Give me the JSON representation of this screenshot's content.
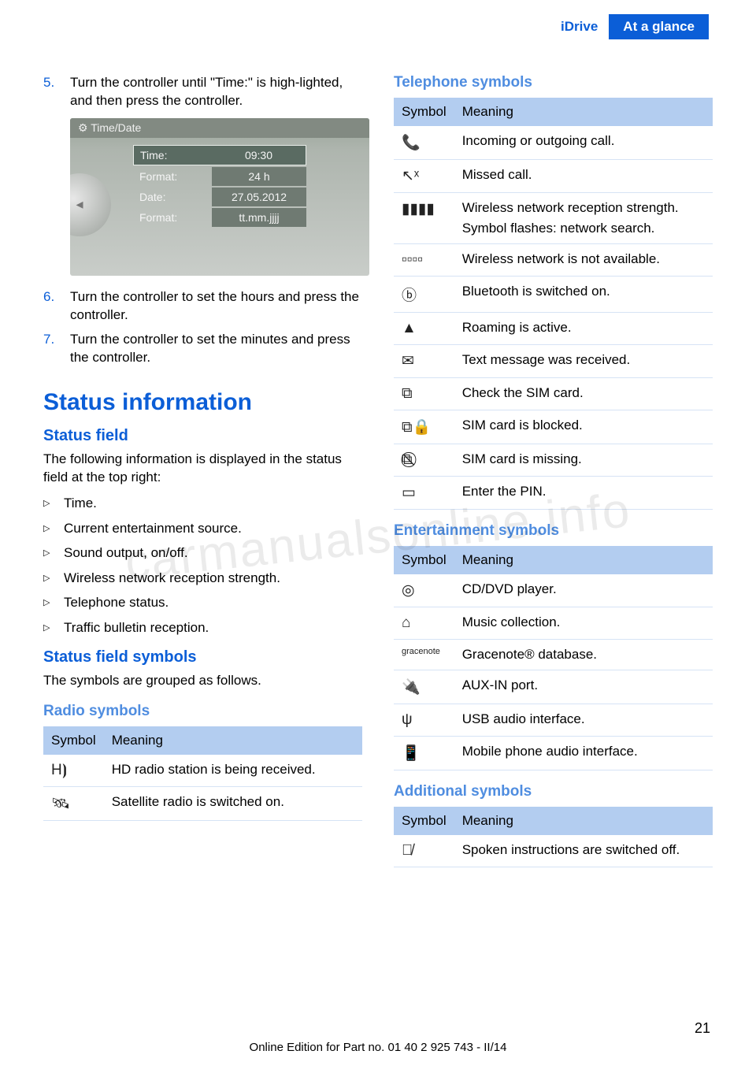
{
  "header": {
    "left": "iDrive",
    "right": "At a glance"
  },
  "left": {
    "steps": {
      "five": {
        "num": "5.",
        "text": "Turn the controller until \"Time:\" is high‐lighted, and then press the controller."
      },
      "six": {
        "num": "6.",
        "text": "Turn the controller to set the hours and press the controller."
      },
      "seven": {
        "num": "7.",
        "text": "Turn the controller to set the minutes and press the controller."
      }
    },
    "screenshot": {
      "title": "⚙ Time/Date",
      "rows": [
        {
          "label": "Time:",
          "value": "09:30"
        },
        {
          "label": "Format:",
          "value": "24 h"
        },
        {
          "label": "Date:",
          "value": "27.05.2012"
        },
        {
          "label": "Format:",
          "value": "tt.mm.jjjj"
        }
      ],
      "dial": "◂"
    },
    "h1": "Status information",
    "h2a": "Status field",
    "p1": "The following information is displayed in the status field at the top right:",
    "bullets": [
      "Time.",
      "Current entertainment source.",
      "Sound output, on/off.",
      "Wireless network reception strength.",
      "Telephone status.",
      "Traffic bulletin reception."
    ],
    "h2b": "Status field symbols",
    "p2": "The symbols are grouped as follows.",
    "radio_title": "Radio symbols",
    "table_head": {
      "col1": "Symbol",
      "col2": "Meaning"
    },
    "radio_rows": [
      {
        "sym": "H⦘",
        "text": "HD radio station is being received."
      },
      {
        "sym": "🛰",
        "text": "Satellite radio is switched on."
      }
    ]
  },
  "right": {
    "tel_title": "Telephone symbols",
    "table_head": {
      "col1": "Symbol",
      "col2": "Meaning"
    },
    "tel_rows": [
      {
        "sym": "📞",
        "text": "Incoming or outgoing call."
      },
      {
        "sym": "↖ˣ",
        "text": "Missed call."
      },
      {
        "sym": "▮▮▮▮",
        "text": "Wireless network reception strength.",
        "text2": "Symbol flashes: network search."
      },
      {
        "sym": "▫▫▫▫",
        "text": "Wireless network is not available."
      },
      {
        "sym": "ⓑ",
        "text": "Bluetooth is switched on."
      },
      {
        "sym": "▲",
        "text": "Roaming is active."
      },
      {
        "sym": "✉",
        "text": "Text message was received."
      },
      {
        "sym": "⧉",
        "text": "Check the SIM card."
      },
      {
        "sym": "⧉🔒",
        "text": "SIM card is blocked."
      },
      {
        "sym": "⧉⃠",
        "text": "SIM card is missing."
      },
      {
        "sym": "▭",
        "text": "Enter the PIN."
      }
    ],
    "ent_title": "Entertainment symbols",
    "ent_rows": [
      {
        "sym": "◎",
        "text": "CD/DVD player."
      },
      {
        "sym": "⌂",
        "text": "Music collection."
      },
      {
        "sym": "gracenote",
        "text": "Gracenote® database."
      },
      {
        "sym": "🔌",
        "text": "AUX-IN port."
      },
      {
        "sym": "ψ",
        "text": "USB audio interface."
      },
      {
        "sym": "📱",
        "text": "Mobile phone audio interface."
      }
    ],
    "add_title": "Additional symbols",
    "add_rows": [
      {
        "sym": "🗩̸",
        "text": "Spoken instructions are switched off."
      }
    ]
  },
  "watermark": "carmanualsonline.info",
  "footer": "Online Edition for Part no. 01 40 2 925 743 - II/14",
  "pagenum": "21"
}
